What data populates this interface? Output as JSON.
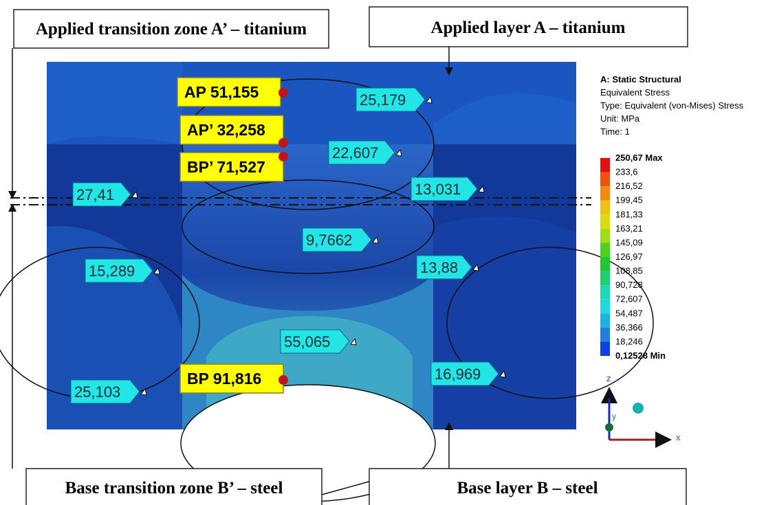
{
  "callouts": {
    "top_left": "Applied transition zone A’ – titanium",
    "top_right": "Applied layer A – titanium",
    "bottom_left": "Base transition zone B’ – steel",
    "bottom_right": "Base layer B – steel"
  },
  "points": [
    "AP 51,155",
    "AP’ 32,258",
    "BP’ 71,527",
    "BP 91,816"
  ],
  "probes": [
    "25,179",
    "22,607",
    "13,031",
    "27,41",
    "9,7662",
    "15,289",
    "13,88",
    "55,065",
    "16,969",
    "25,103"
  ],
  "legend": {
    "title": "A: Static Structural",
    "lines": [
      "Equivalent Stress",
      "Type: Equivalent (von-Mises) Stress",
      "Unit: MPa",
      "Time: 1"
    ],
    "scale": [
      "250,67 Max",
      "233,6",
      "216,52",
      "199,45",
      "181,33",
      "163,21",
      "145,09",
      "126,97",
      "108,85",
      "90,728",
      "72,607",
      "54,487",
      "36,366",
      "18,246",
      "0,12528 Min"
    ]
  },
  "triad": [
    "z",
    "y",
    "x"
  ]
}
